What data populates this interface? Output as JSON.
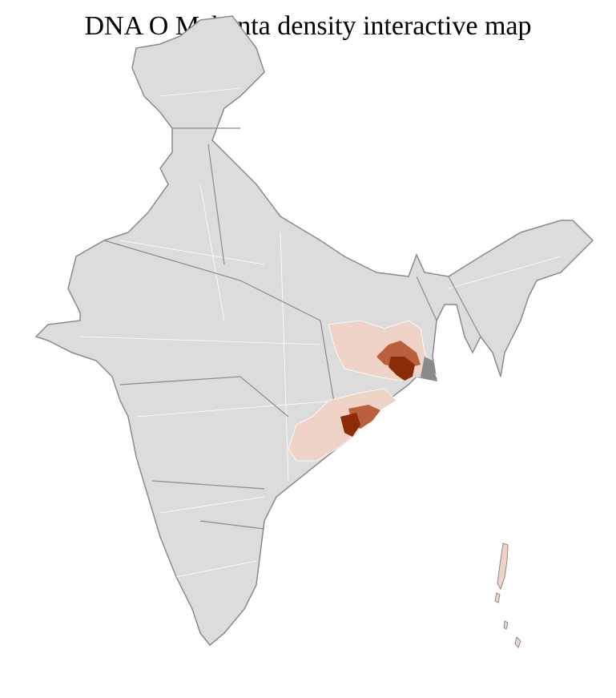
{
  "title": "DNA O Mahanta density interactive map",
  "colors": {
    "base": "#dcdcdc",
    "state_border": "#8a8a8a",
    "district_border": "#ffffff",
    "low": "#efd3c6",
    "medium": "#b9603d",
    "high": "#8b2c05"
  },
  "regions": [
    {
      "name": "jharkhand-west-bengal",
      "level": "low"
    },
    {
      "name": "odisha",
      "level": "low"
    },
    {
      "name": "west-bengal-south",
      "level": "medium"
    },
    {
      "name": "west-bengal-core",
      "level": "high"
    },
    {
      "name": "odisha-coast",
      "level": "medium"
    },
    {
      "name": "odisha-ganjam",
      "level": "high"
    }
  ]
}
